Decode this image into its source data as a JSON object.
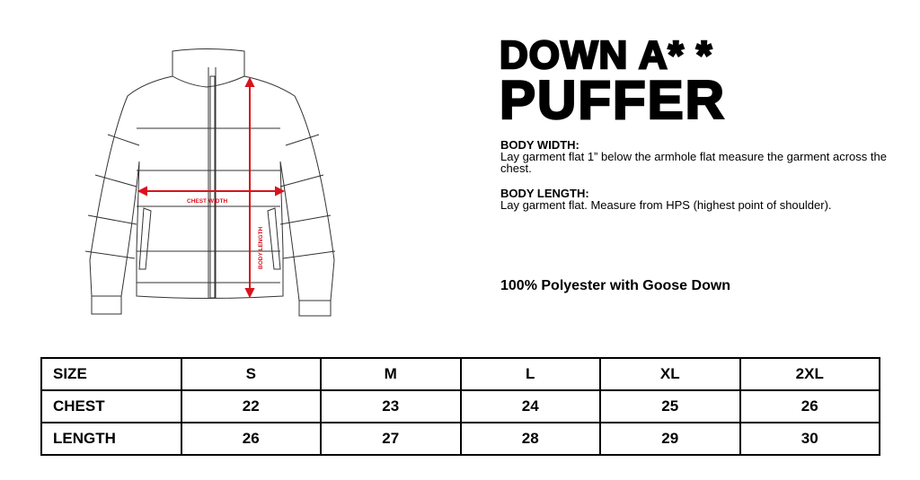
{
  "title": {
    "line1": "DOWN A* *",
    "line2": "PUFFER"
  },
  "diagram": {
    "chest_label": "CHEST WIDTH",
    "length_label": "BODY LENGTH",
    "arrow_color": "#d7141e"
  },
  "body_width": {
    "heading": "BODY WIDTH:",
    "text": "Lay garment flat 1” below the armhole flat measure the garment across the chest."
  },
  "body_length": {
    "heading": "BODY LENGTH:",
    "text": "Lay garment flat. Measure from HPS (highest point of shoulder)."
  },
  "material": "100% Polyester with Goose Down",
  "size_table": {
    "header": [
      "SIZE",
      "S",
      "M",
      "L",
      "XL",
      "2XL"
    ],
    "rows": [
      [
        "CHEST",
        "22",
        "23",
        "24",
        "25",
        "26"
      ],
      [
        "LENGTH",
        "26",
        "27",
        "28",
        "29",
        "30"
      ]
    ]
  }
}
